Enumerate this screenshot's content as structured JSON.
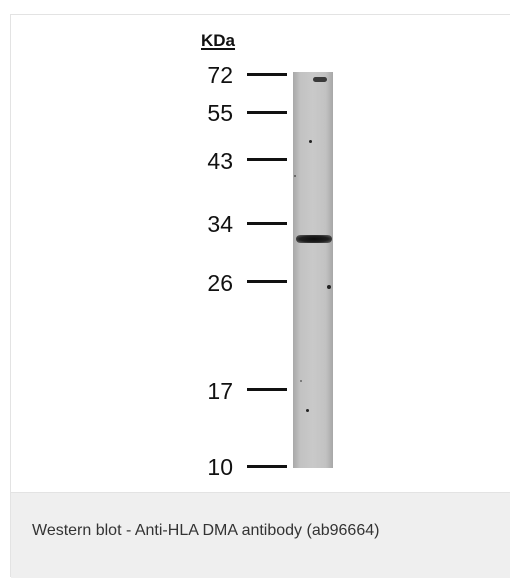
{
  "figure": {
    "unit_label": "KDa",
    "markers": [
      {
        "label": "72"
      },
      {
        "label": "55"
      },
      {
        "label": "43"
      },
      {
        "label": "34"
      },
      {
        "label": "26"
      },
      {
        "label": "17"
      },
      {
        "label": "10"
      }
    ]
  },
  "caption": {
    "text": "Western blot - Anti-HLA DMA antibody (ab96664)"
  }
}
